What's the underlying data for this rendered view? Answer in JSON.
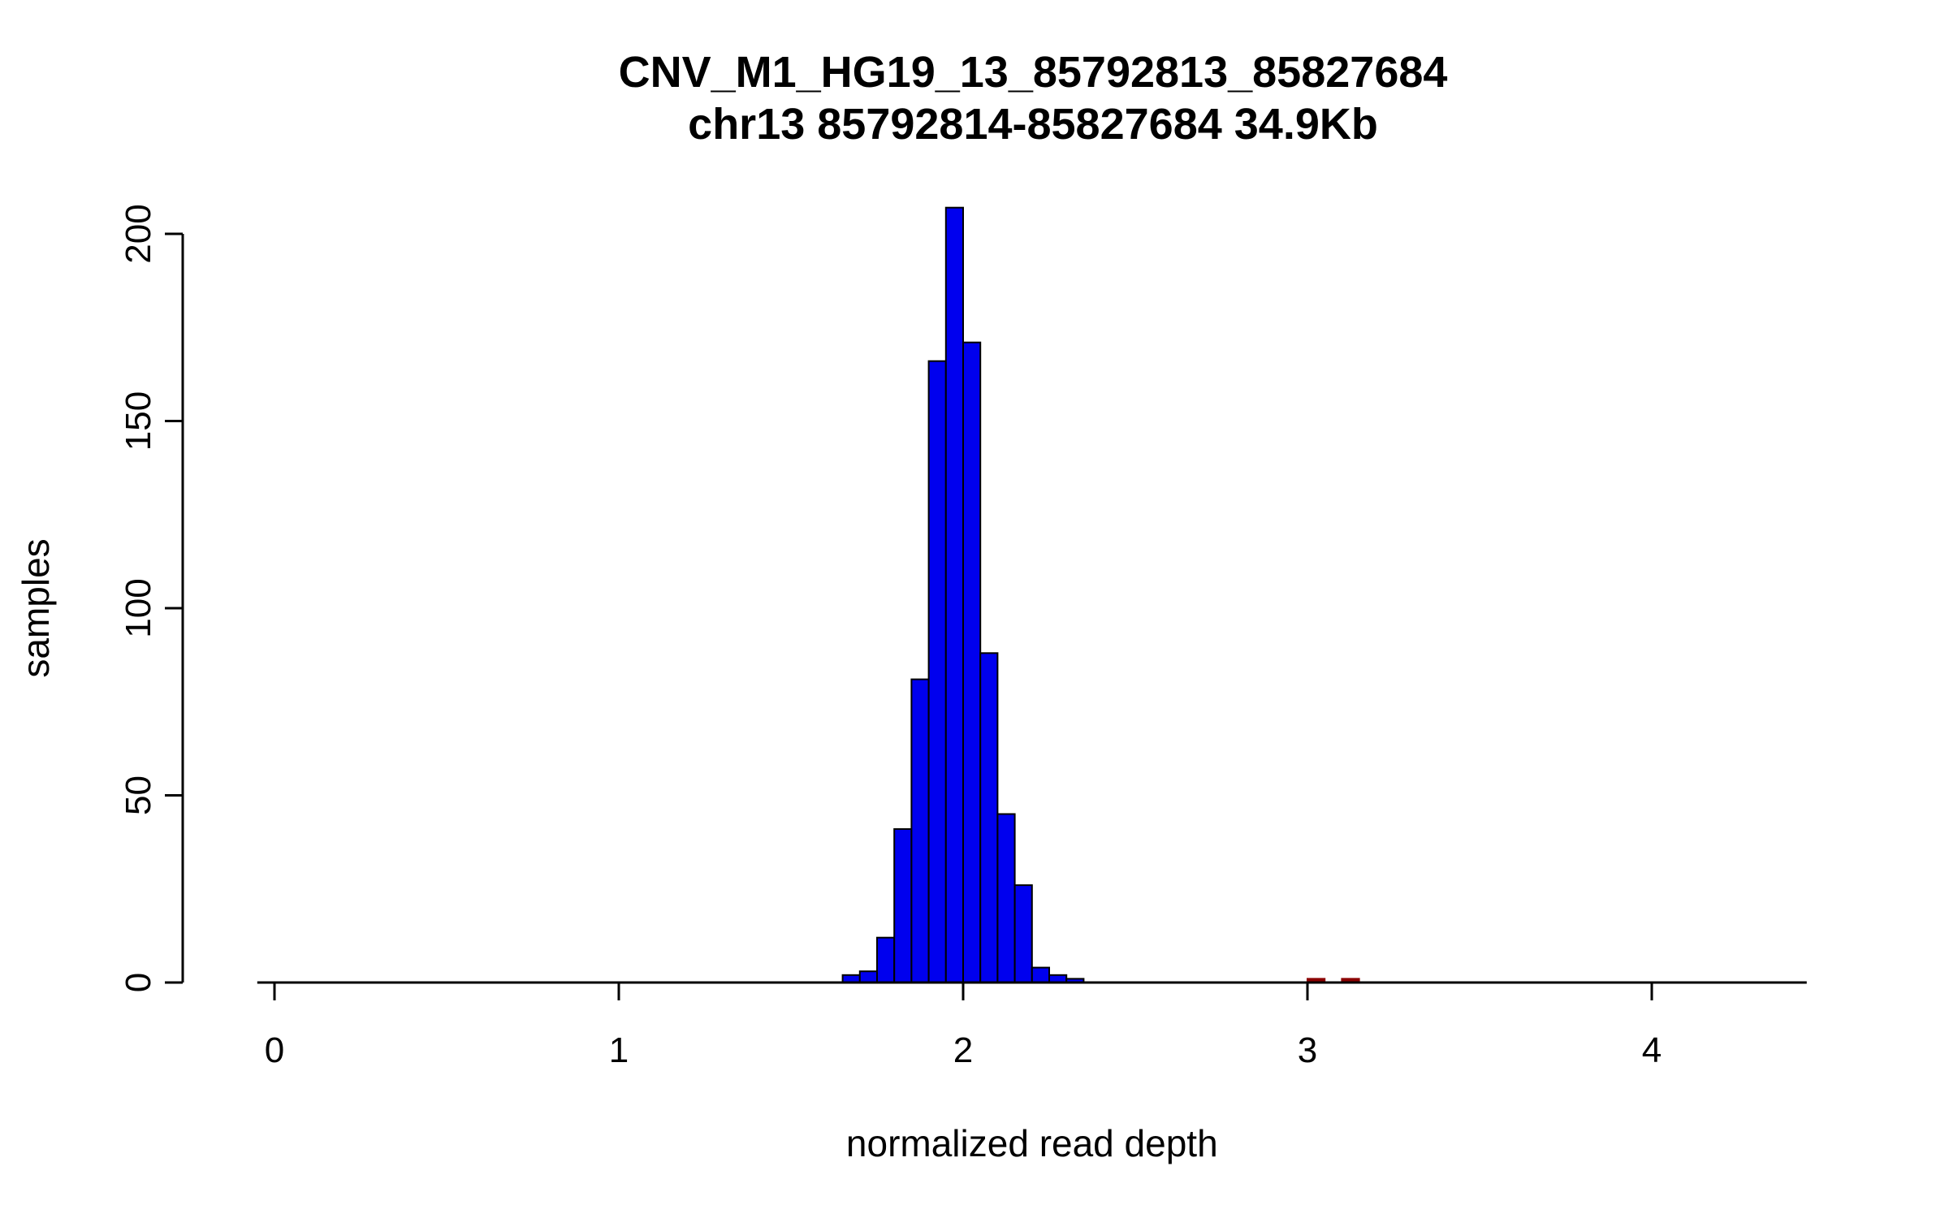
{
  "page": {
    "background": "#ffffff"
  },
  "chart_data": {
    "type": "bar",
    "subtype": "histogram",
    "title": "CNV_M1_HG19_13_85792813_85827684",
    "subtitle": "chr13 85792814-85827684 34.9Kb",
    "xlabel": "normalized read depth",
    "ylabel": "samples",
    "xlim": [
      -0.05,
      4.45
    ],
    "ylim": [
      0,
      207
    ],
    "x_ticks": [
      0,
      1,
      2,
      3,
      4
    ],
    "y_ticks": [
      0,
      50,
      100,
      150,
      200
    ],
    "bin_width": 0.05,
    "grid": false,
    "legend": "none",
    "colors": {
      "main_fill": "#0000EE",
      "main_stroke": "#000000",
      "outlier_fill": "#8B0000",
      "outlier_stroke": "#8B0000",
      "axis": "#000000"
    },
    "series": [
      {
        "name": "samples",
        "color_key": "main",
        "bins": [
          [
            1.65,
            2
          ],
          [
            1.7,
            3
          ],
          [
            1.75,
            12
          ],
          [
            1.8,
            41
          ],
          [
            1.85,
            81
          ],
          [
            1.9,
            166
          ],
          [
            1.95,
            207
          ],
          [
            2.0,
            171
          ],
          [
            2.05,
            88
          ],
          [
            2.1,
            45
          ],
          [
            2.15,
            26
          ],
          [
            2.2,
            4
          ],
          [
            2.25,
            2
          ],
          [
            2.3,
            1
          ]
        ]
      },
      {
        "name": "outliers",
        "color_key": "outlier",
        "bins": [
          [
            3.0,
            1
          ],
          [
            3.1,
            1
          ]
        ]
      }
    ]
  }
}
